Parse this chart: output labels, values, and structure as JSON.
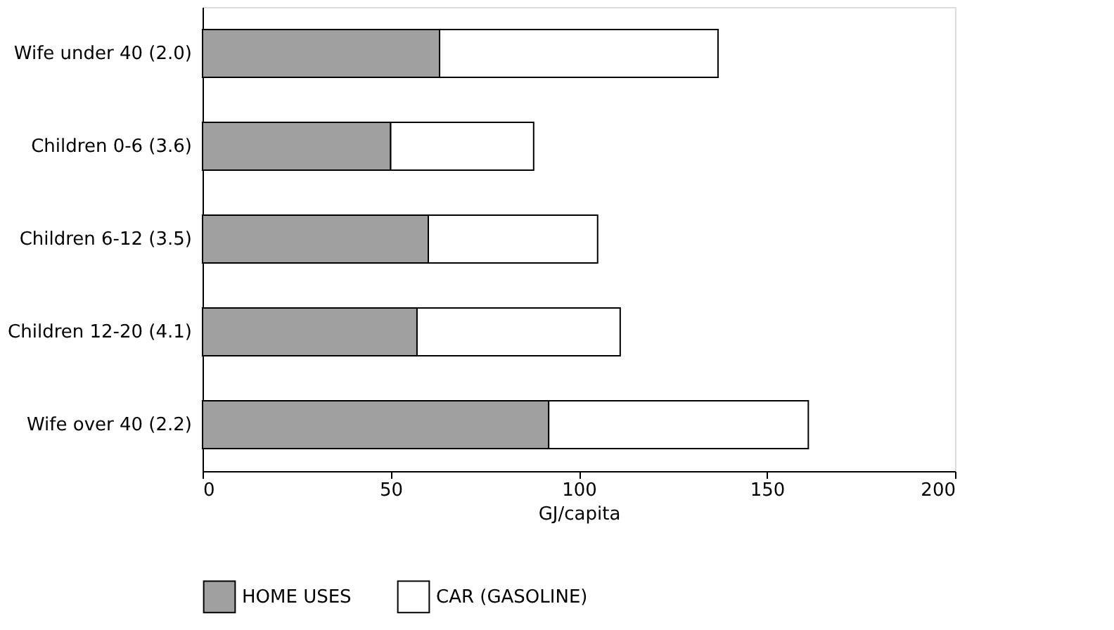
{
  "chart_data": {
    "type": "bar",
    "orientation": "horizontal",
    "stacked": true,
    "xlabel": "GJ/capita",
    "categories": [
      "Wife under 40 (2.0)",
      "Children 0-6 (3.6)",
      "Children 6-12 (3.5)",
      "Children 12-20 (4.1)",
      "Wife over 40 (2.2)"
    ],
    "series": [
      {
        "name": "HOME USES",
        "color": "#a0a0a0",
        "values": [
          63,
          50,
          60,
          57,
          92
        ]
      },
      {
        "name": "CAR (GASOLINE)",
        "color": "#ffffff",
        "values": [
          74,
          38,
          45,
          54,
          69
        ]
      }
    ],
    "xlim": [
      0,
      200
    ],
    "xticks": [
      0,
      50,
      100,
      150,
      200
    ],
    "grid": false,
    "legend": "bottom"
  }
}
